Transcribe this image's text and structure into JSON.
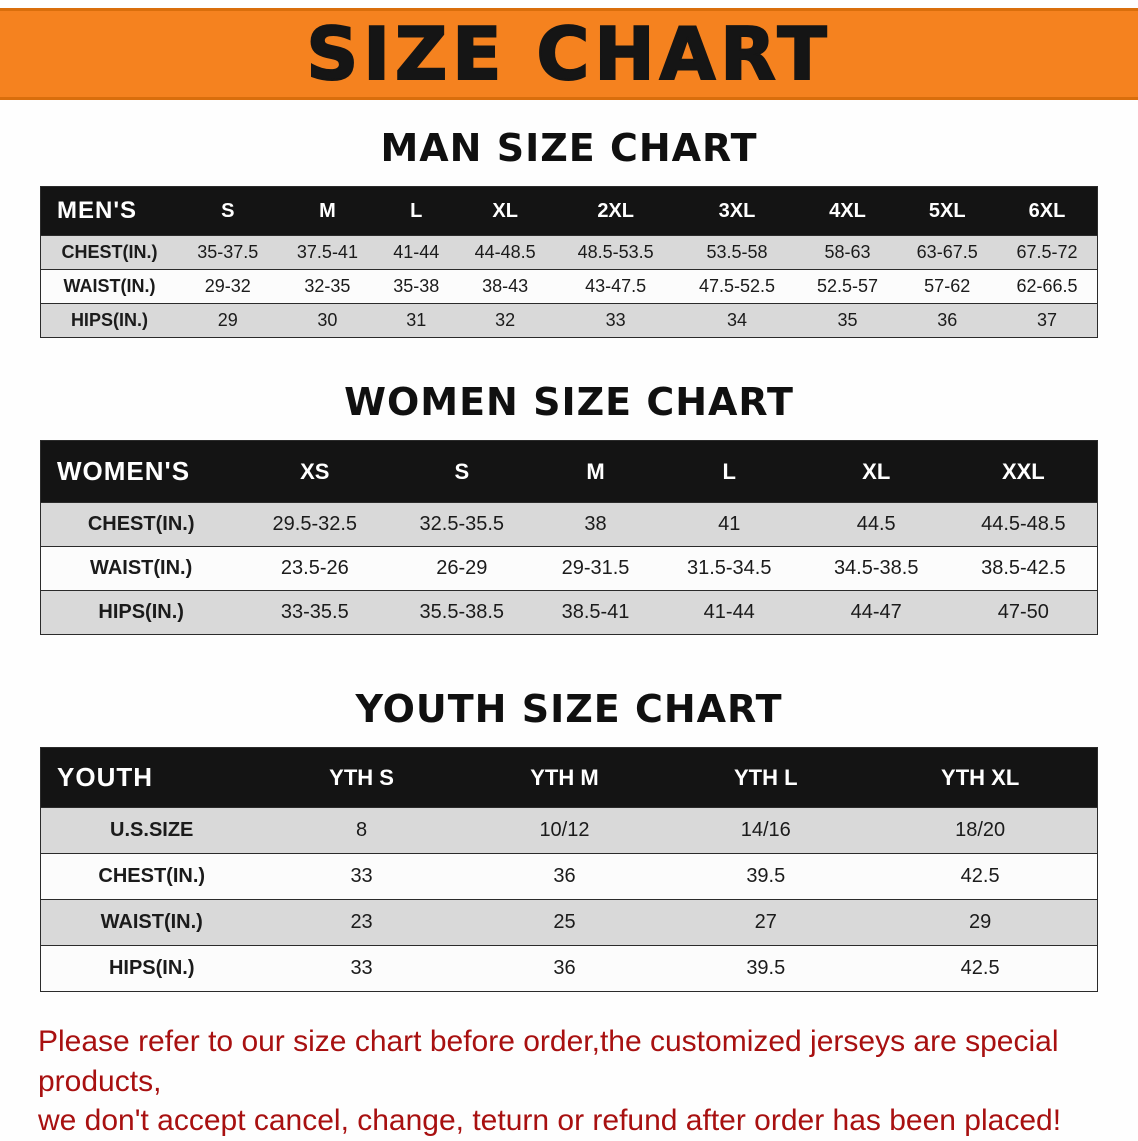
{
  "banner": {
    "title": "SIZE CHART"
  },
  "sections": [
    {
      "heading": "MAN SIZE CHART",
      "table": {
        "name": "mens",
        "header": [
          "MEN'S",
          "S",
          "M",
          "L",
          "XL",
          "2XL",
          "3XL",
          "4XL",
          "5XL",
          "6XL"
        ],
        "rows": [
          [
            "CHEST(IN.)",
            "35-37.5",
            "37.5-41",
            "41-44",
            "44-48.5",
            "48.5-53.5",
            "53.5-58",
            "58-63",
            "63-67.5",
            "67.5-72"
          ],
          [
            "WAIST(IN.)",
            "29-32",
            "32-35",
            "35-38",
            "38-43",
            "43-47.5",
            "47.5-52.5",
            "52.5-57",
            "57-62",
            "62-66.5"
          ],
          [
            "HIPS(IN.)",
            "29",
            "30",
            "31",
            "32",
            "33",
            "34",
            "35",
            "36",
            "37"
          ]
        ]
      }
    },
    {
      "heading": "WOMEN SIZE CHART",
      "table": {
        "name": "womens",
        "header": [
          "WOMEN'S",
          "XS",
          "S",
          "M",
          "L",
          "XL",
          "XXL"
        ],
        "rows": [
          [
            "CHEST(IN.)",
            "29.5-32.5",
            "32.5-35.5",
            "38",
            "41",
            "44.5",
            "44.5-48.5"
          ],
          [
            "WAIST(IN.)",
            "23.5-26",
            "26-29",
            "29-31.5",
            "31.5-34.5",
            "34.5-38.5",
            "38.5-42.5"
          ],
          [
            "HIPS(IN.)",
            "33-35.5",
            "35.5-38.5",
            "38.5-41",
            "41-44",
            "44-47",
            "47-50"
          ]
        ]
      }
    },
    {
      "heading": "YOUTH SIZE CHART",
      "table": {
        "name": "youth",
        "header": [
          "YOUTH",
          "YTH S",
          "YTH M",
          "YTH L",
          "YTH XL"
        ],
        "rows": [
          [
            "U.S.SIZE",
            "8",
            "10/12",
            "14/16",
            "18/20"
          ],
          [
            "CHEST(IN.)",
            "33",
            "36",
            "39.5",
            "42.5"
          ],
          [
            "WAIST(IN.)",
            "23",
            "25",
            "27",
            "29"
          ],
          [
            "HIPS(IN.)",
            "33",
            "36",
            "39.5",
            "42.5"
          ]
        ]
      }
    }
  ],
  "footer": {
    "line1": "Please refer to our size chart before order,the customized jerseys are special products,",
    "line2": "we don't accept cancel, change, teturn or refund after order has been placed!"
  },
  "colors": {
    "banner_bg": "#f5821f",
    "table_header_bg": "#141414",
    "row_stripe": "#d9d9d9",
    "footer_text": "#a81010"
  }
}
